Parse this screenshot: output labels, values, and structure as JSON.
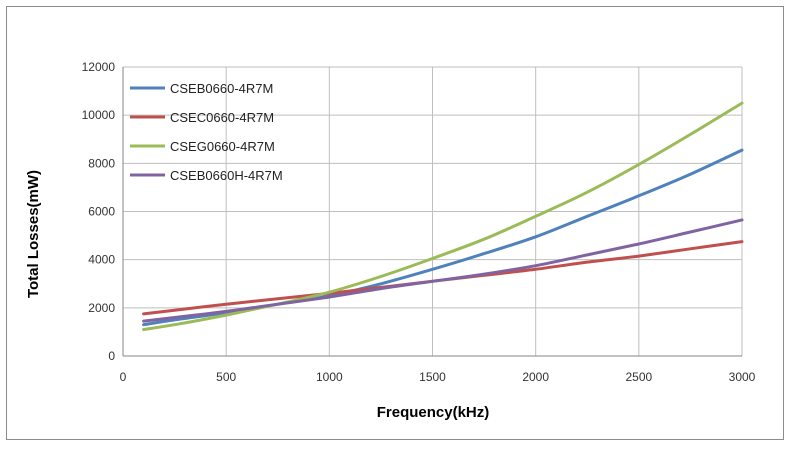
{
  "chart_data": {
    "type": "line",
    "title": "",
    "xlabel": "Frequency(kHz)",
    "ylabel": "Total  Losses(mW)",
    "xlim": [
      0,
      3000
    ],
    "ylim": [
      0,
      12000
    ],
    "xticks": [
      0,
      500,
      1000,
      1500,
      2000,
      2500,
      3000
    ],
    "yticks": [
      0,
      2000,
      4000,
      6000,
      8000,
      10000,
      12000
    ],
    "xtick_labels": [
      "0",
      "500",
      "1000",
      "1500",
      "2000",
      "2500",
      "3000"
    ],
    "ytick_labels": [
      "0",
      "2000",
      "4000",
      "6000",
      "8000",
      "10000",
      "12000"
    ],
    "grid": true,
    "legend_position": "top-left",
    "series": [
      {
        "name": "CSEB0660-4R7M",
        "color": "#4f81bd",
        "x": [
          100,
          250,
          500,
          750,
          1000,
          1250,
          1500,
          1750,
          2000,
          2250,
          2500,
          2750,
          3000
        ],
        "y": [
          1300,
          1500,
          1800,
          2150,
          2500,
          3000,
          3600,
          4250,
          4950,
          5800,
          6650,
          7550,
          8550
        ]
      },
      {
        "name": "CSEC0660-4R7M",
        "color": "#c0504d",
        "x": [
          100,
          250,
          500,
          750,
          1000,
          1250,
          1500,
          1750,
          2000,
          2250,
          2500,
          2750,
          3000
        ],
        "y": [
          1750,
          1900,
          2150,
          2380,
          2600,
          2850,
          3100,
          3350,
          3600,
          3900,
          4150,
          4450,
          4750
        ]
      },
      {
        "name": "CSEG0660-4R7M",
        "color": "#9bbb59",
        "x": [
          100,
          250,
          500,
          750,
          1000,
          1250,
          1500,
          1750,
          2000,
          2250,
          2500,
          2750,
          3000
        ],
        "y": [
          1100,
          1300,
          1700,
          2150,
          2650,
          3300,
          4050,
          4850,
          5800,
          6800,
          7950,
          9200,
          10500
        ]
      },
      {
        "name": "CSEB0660H-4R7M",
        "color": "#8064a2",
        "x": [
          100,
          250,
          500,
          750,
          1000,
          1250,
          1500,
          1750,
          2000,
          2250,
          2500,
          2750,
          3000
        ],
        "y": [
          1450,
          1600,
          1850,
          2150,
          2450,
          2800,
          3100,
          3400,
          3750,
          4200,
          4650,
          5150,
          5650
        ]
      }
    ]
  }
}
